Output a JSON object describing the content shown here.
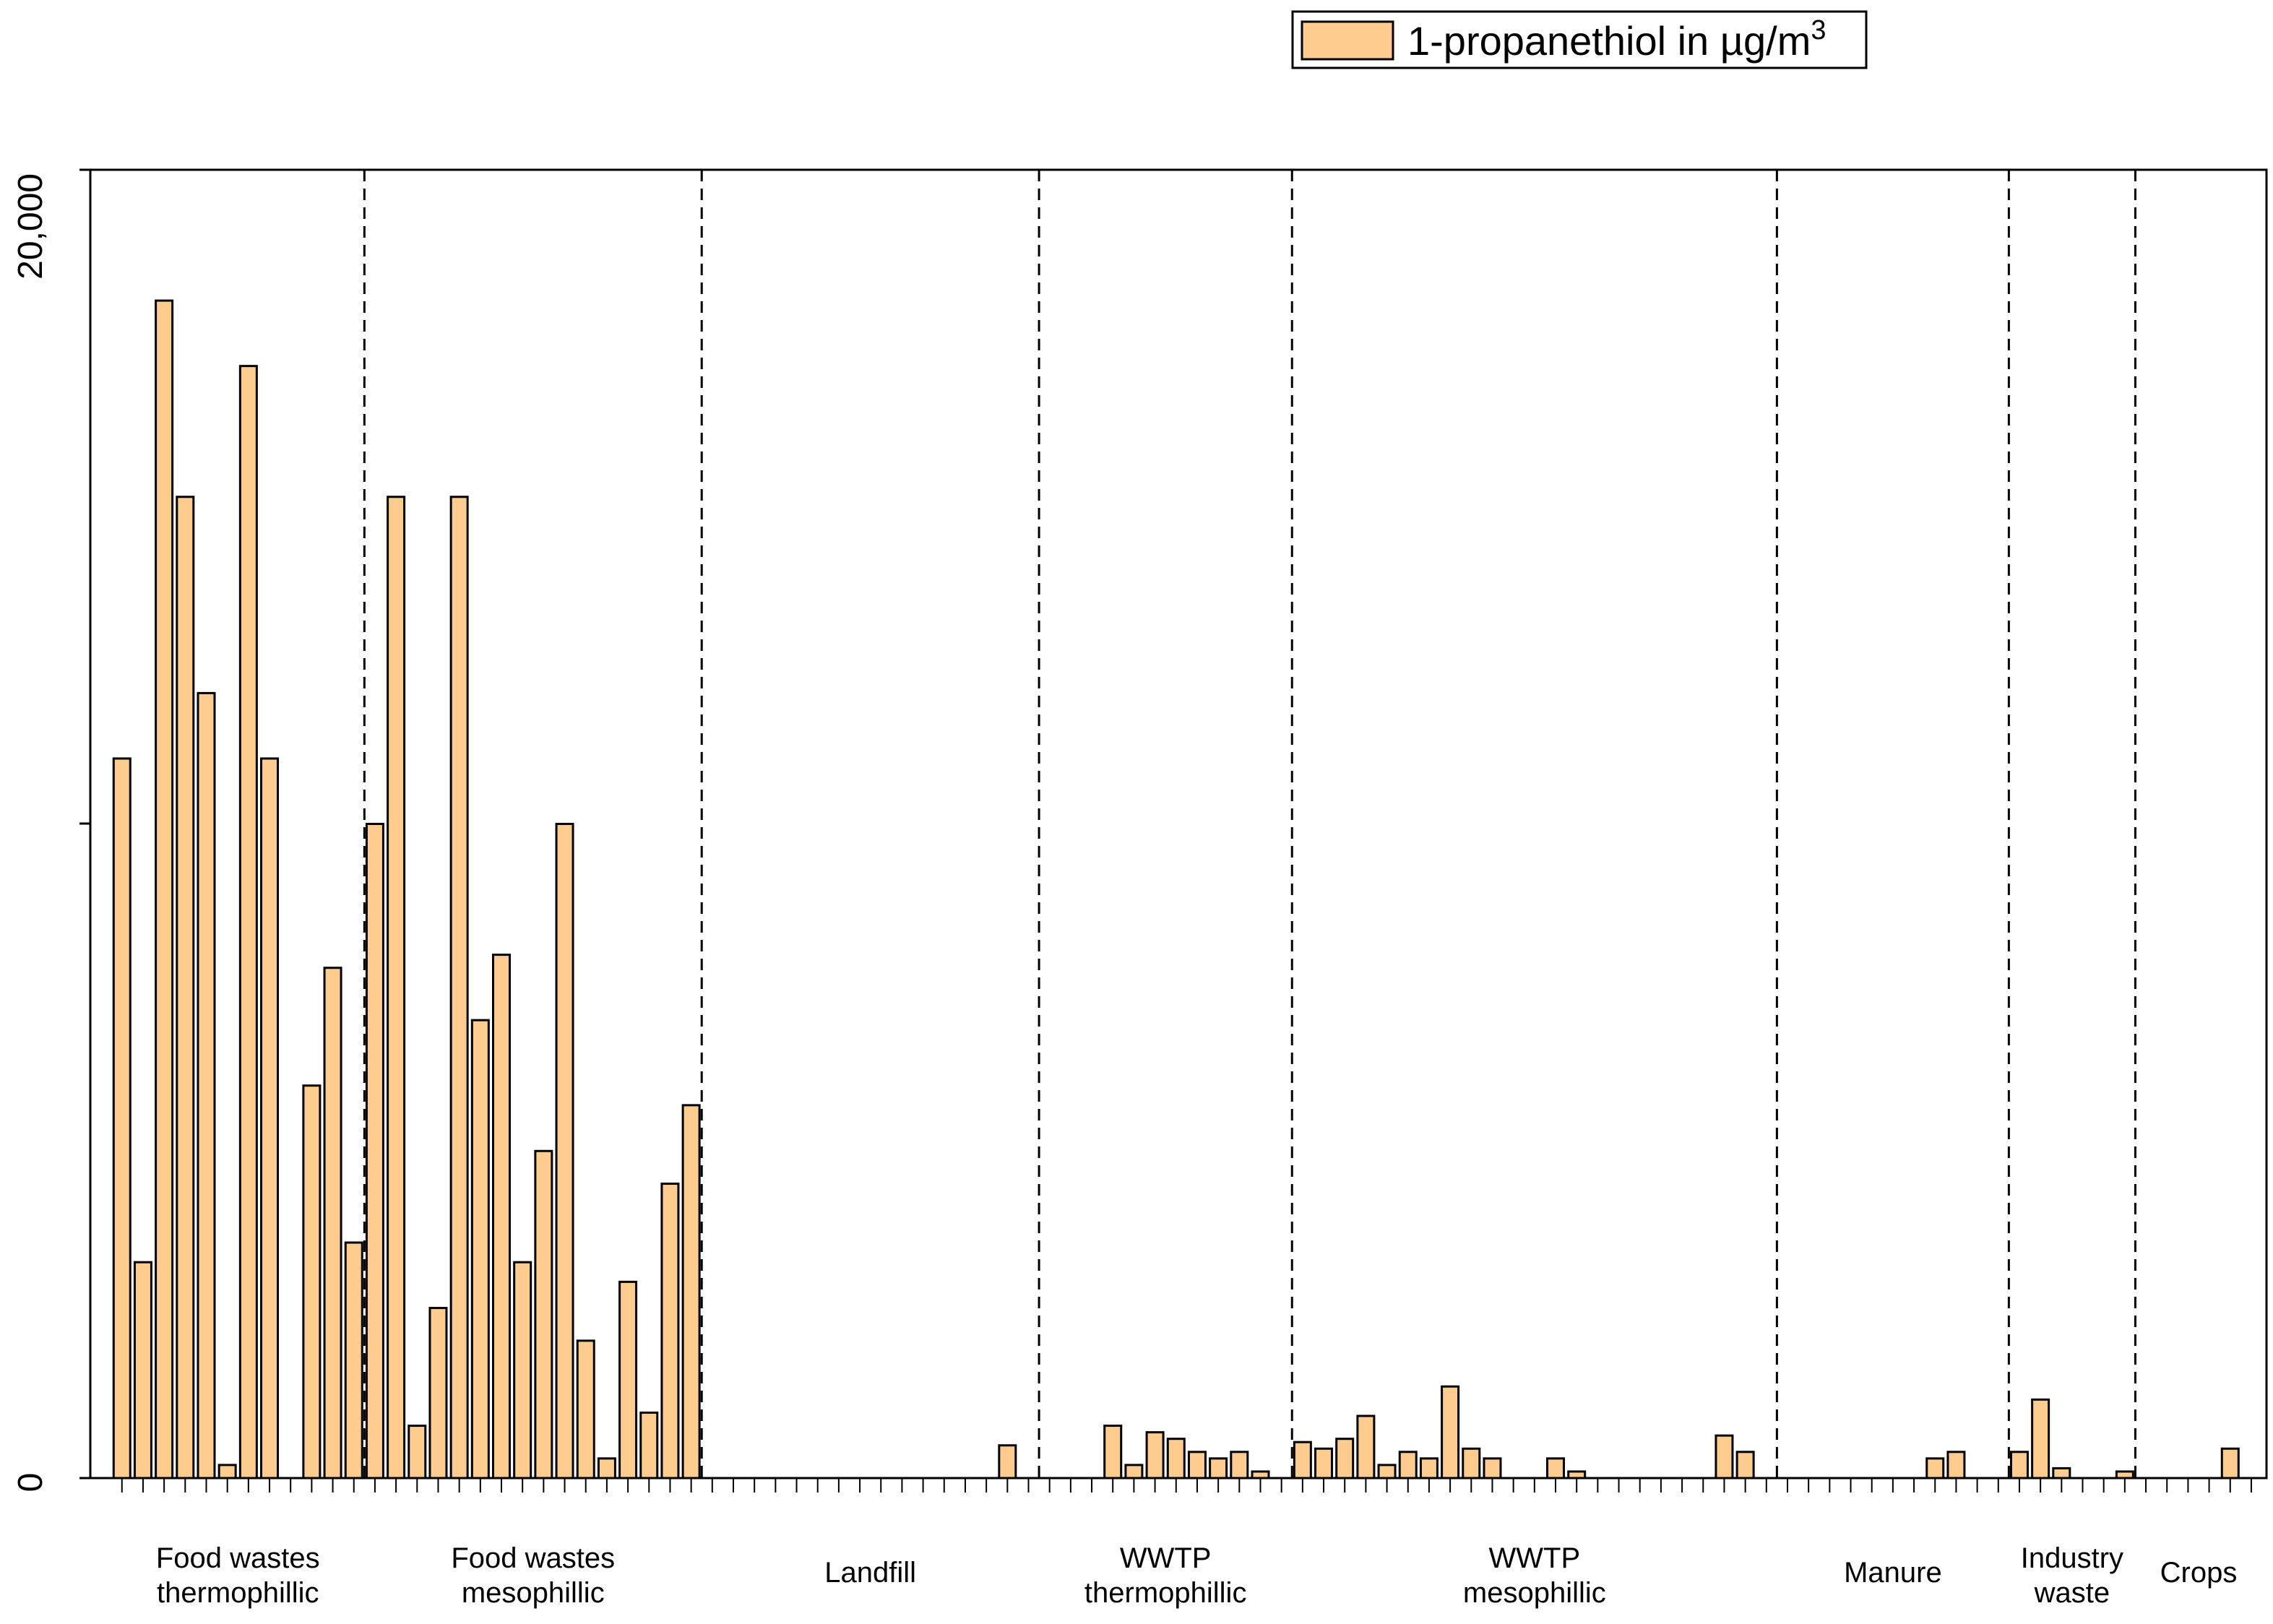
{
  "chart_data": {
    "type": "bar",
    "legend": {
      "label": "1-propanethiol in µg/m",
      "superscript": "3",
      "color": "#FFCC8F",
      "position": "top-right"
    },
    "yaxis": {
      "ticks": [
        "0",
        "20,000"
      ],
      "ylim": [
        0,
        40000
      ]
    },
    "grid": false,
    "bar_color": "#FFCC8F",
    "bar_edge": "#000000",
    "groups": [
      {
        "name": [
          "Food wastes",
          "thermophillic"
        ],
        "values": [
          22000,
          6600,
          36000,
          30000,
          24000,
          400,
          34000,
          22000,
          0,
          12000,
          15600,
          7200
        ]
      },
      {
        "name": [
          "Food wastes",
          "mesophillic"
        ],
        "values": [
          20000,
          30000,
          1600,
          5200,
          30000,
          14000,
          16000,
          6600,
          10000,
          20000,
          4200,
          600,
          6000,
          2000,
          9000,
          11400
        ]
      },
      {
        "name": [
          "Landfill"
        ],
        "values": [
          0,
          0,
          0,
          0,
          0,
          0,
          0,
          0,
          0,
          0,
          0,
          0,
          0,
          0,
          1000,
          0
        ]
      },
      {
        "name": [
          "WWTP",
          "thermophillic"
        ],
        "values": [
          0,
          0,
          0,
          1600,
          400,
          1400,
          1200,
          800,
          600,
          800,
          200,
          0
        ]
      },
      {
        "name": [
          "WWTP",
          "mesophillic"
        ],
        "values": [
          1100,
          900,
          1200,
          1900,
          400,
          800,
          600,
          2800,
          900,
          600,
          0,
          0,
          600,
          200,
          0,
          0,
          0,
          0,
          0,
          0,
          1300,
          800,
          0
        ]
      },
      {
        "name": [
          "Manure"
        ],
        "values": [
          0,
          0,
          0,
          0,
          0,
          0,
          0,
          600,
          800,
          0,
          0
        ]
      },
      {
        "name": [
          "Industry",
          "waste"
        ],
        "values": [
          800,
          2400,
          300,
          0,
          0,
          200
        ]
      },
      {
        "name": [
          "Crops"
        ],
        "values": [
          0,
          0,
          0,
          0,
          900,
          0
        ]
      }
    ]
  }
}
